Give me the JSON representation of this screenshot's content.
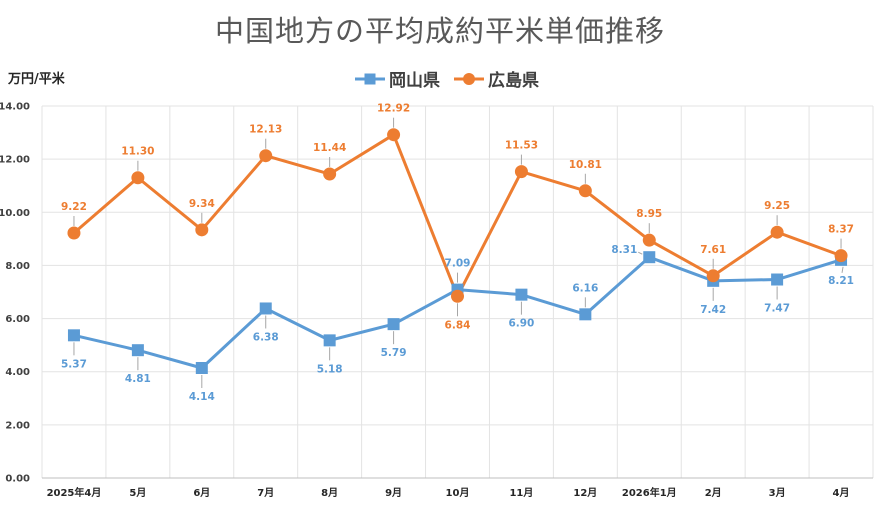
{
  "chart_data": {
    "type": "line",
    "title": "中国地方の平均成約平米単価推移",
    "ylabel": "万円/平米",
    "xlabel": "",
    "categories": [
      "2025年4月",
      "5月",
      "6月",
      "7月",
      "8月",
      "9月",
      "10月",
      "11月",
      "12月",
      "2026年1月",
      "2月",
      "3月",
      "4月"
    ],
    "ylim": [
      0,
      14
    ],
    "yticks": [
      "0.00",
      "2.00",
      "4.00",
      "6.00",
      "8.00",
      "10.00",
      "12.00",
      "14.00"
    ],
    "grid": true,
    "legend_position": "top",
    "series": [
      {
        "name": "岡山県",
        "color": "#5B9BD5",
        "marker": "square",
        "values": [
          5.37,
          4.81,
          4.14,
          6.38,
          5.18,
          5.79,
          7.09,
          6.9,
          6.16,
          8.31,
          7.42,
          7.47,
          8.21
        ],
        "labels": [
          "5.37",
          "4.81",
          "4.14",
          "6.38",
          "5.18",
          "5.79",
          "7.09",
          "6.90",
          "6.16",
          "8.31",
          "7.42",
          "7.47",
          "8.21"
        ]
      },
      {
        "name": "広島県",
        "color": "#ED7D31",
        "marker": "circle",
        "values": [
          9.22,
          11.3,
          9.34,
          12.13,
          11.44,
          12.92,
          6.84,
          11.53,
          10.81,
          8.95,
          7.61,
          9.25,
          8.37
        ],
        "labels": [
          "9.22",
          "11.30",
          "9.34",
          "12.13",
          "11.44",
          "12.92",
          "6.84",
          "11.53",
          "10.81",
          "8.95",
          "7.61",
          "9.25",
          "8.37"
        ]
      }
    ]
  }
}
